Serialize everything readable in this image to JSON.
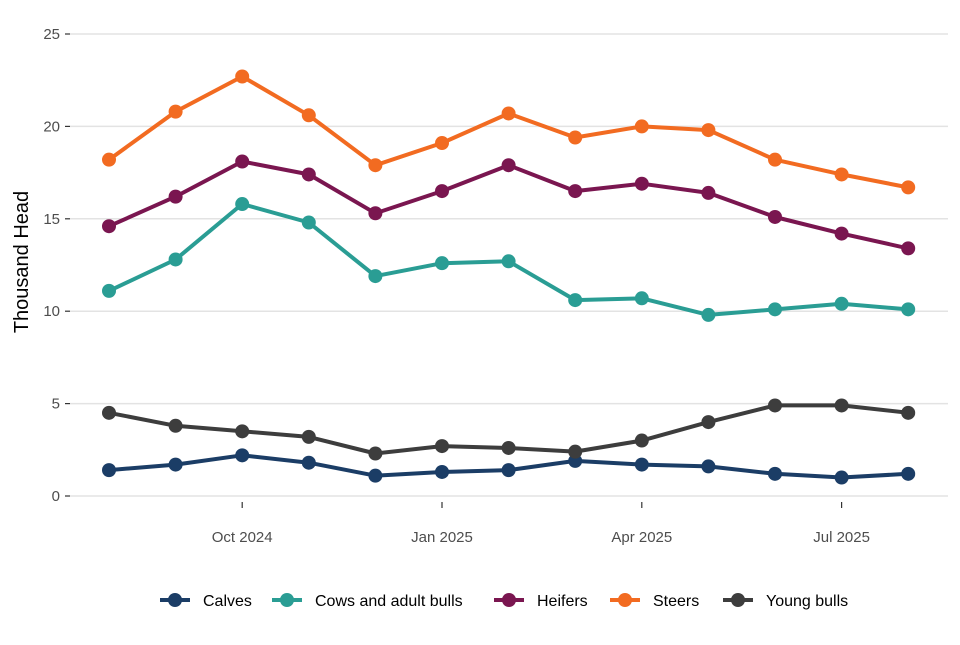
{
  "chart_data": {
    "type": "line",
    "ylabel": "Thousand Head",
    "ylim": [
      0,
      25
    ],
    "yticks": [
      0,
      5,
      10,
      15,
      20,
      25
    ],
    "xticks": [
      {
        "label": "Oct 2024",
        "index": 2
      },
      {
        "label": "Jan 2025",
        "index": 5
      },
      {
        "label": "Apr 2025",
        "index": 8
      },
      {
        "label": "Jul 2025",
        "index": 11
      }
    ],
    "x": [
      "Aug 2024",
      "Sep 2024",
      "Oct 2024",
      "Nov 2024",
      "Dec 2024",
      "Jan 2025",
      "Feb 2025",
      "Mar 2025",
      "Apr 2025",
      "May 2025",
      "Jun 2025",
      "Jul 2025",
      "Aug 2025"
    ],
    "grid": true,
    "legend_position": "bottom",
    "series": [
      {
        "name": "Calves",
        "color": "#1b3d66",
        "values": [
          1.4,
          1.7,
          2.2,
          1.8,
          1.1,
          1.3,
          1.4,
          1.9,
          1.7,
          1.6,
          1.2,
          1.0,
          1.2
        ]
      },
      {
        "name": "Cows and adult bulls",
        "color": "#2a9d94",
        "values": [
          11.1,
          12.8,
          15.8,
          14.8,
          11.9,
          12.6,
          12.7,
          10.6,
          10.7,
          9.8,
          10.1,
          10.4,
          10.1
        ]
      },
      {
        "name": "Heifers",
        "color": "#7a1650",
        "values": [
          14.6,
          16.2,
          18.1,
          17.4,
          15.3,
          16.5,
          17.9,
          16.5,
          16.9,
          16.4,
          15.1,
          14.2,
          13.4
        ]
      },
      {
        "name": "Steers",
        "color": "#f26b21",
        "values": [
          18.2,
          20.8,
          22.7,
          20.6,
          17.9,
          19.1,
          20.7,
          19.4,
          20.0,
          19.8,
          18.2,
          17.4,
          16.7
        ]
      },
      {
        "name": "Young bulls",
        "color": "#3d3d3d",
        "values": [
          4.5,
          3.8,
          3.5,
          3.2,
          2.3,
          2.7,
          2.6,
          2.4,
          3.0,
          4.0,
          4.9,
          4.9,
          4.5
        ]
      }
    ]
  }
}
